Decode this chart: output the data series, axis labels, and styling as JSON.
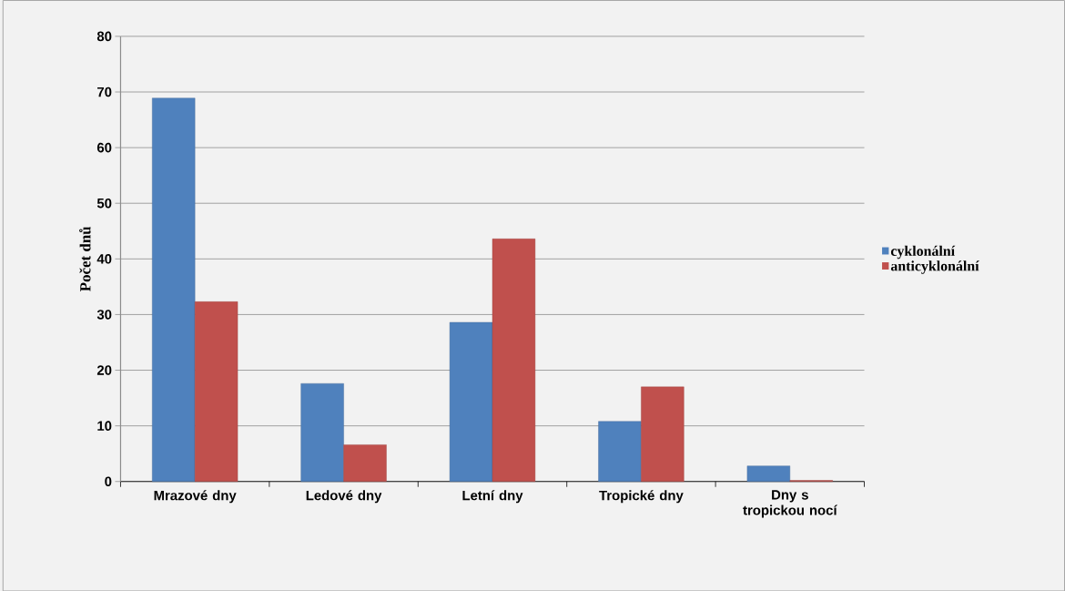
{
  "chart_data": {
    "type": "bar",
    "ylabel": "Počet dnů",
    "categories": [
      "Mrazové dny",
      "Ledové dny",
      "Letní dny",
      "Tropické dny",
      "Dny s tropickou nocí"
    ],
    "series": [
      {
        "name": "cyklonální",
        "color": "#4f81bd",
        "values": [
          68.9,
          17.6,
          28.6,
          10.8,
          2.8
        ]
      },
      {
        "name": "anticyklonální",
        "color": "#c0504d",
        "values": [
          32.3,
          6.6,
          43.6,
          17.0,
          0.2
        ]
      }
    ],
    "ylim": [
      0,
      80
    ],
    "yticks": [
      0,
      10,
      20,
      30,
      40,
      50,
      60,
      70,
      80
    ],
    "grid": "y",
    "legend": "right"
  }
}
